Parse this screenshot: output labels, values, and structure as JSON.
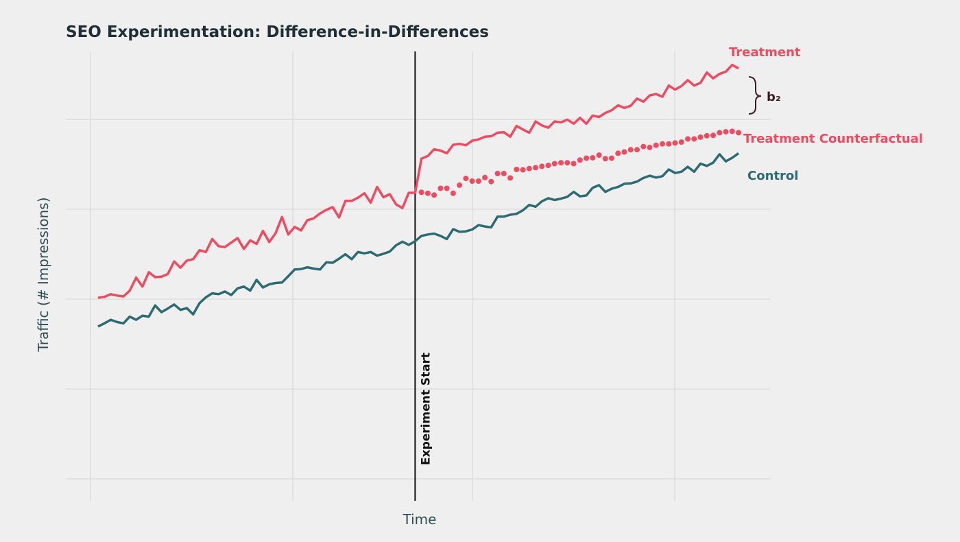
{
  "chart_data": {
    "type": "line",
    "title": "SEO Experimentation: Difference-in-Differences",
    "xlabel": "Time",
    "ylabel": "Traffic (# Impressions)",
    "xlim": [
      0,
      110
    ],
    "ylim": [
      0,
      100
    ],
    "grid": true,
    "vline": {
      "x": 50,
      "label": "Experiment Start"
    },
    "annotation": {
      "label": "b₂",
      "color": "#3a1c24"
    },
    "series": [
      {
        "name": "Treatment",
        "color": "#ef4b60",
        "style": "line",
        "x": [
          0,
          1,
          2,
          3,
          4,
          5,
          6,
          7,
          8,
          9,
          10,
          11,
          12,
          13,
          14,
          15,
          16,
          17,
          18,
          19,
          20,
          21,
          22,
          23,
          24,
          25,
          26,
          27,
          28,
          29,
          30,
          31,
          32,
          33,
          34,
          35,
          36,
          37,
          38,
          39,
          40,
          41,
          42,
          43,
          44,
          45,
          46,
          47,
          48,
          49,
          50,
          51,
          52,
          53,
          54,
          55,
          56,
          57,
          58,
          59,
          60,
          61,
          62,
          63,
          64,
          65,
          66,
          67,
          68,
          69,
          70,
          71,
          72,
          73,
          74,
          75,
          76,
          77,
          78,
          79,
          80,
          81,
          82,
          83,
          84,
          85,
          86,
          87,
          88,
          89,
          90,
          91,
          92,
          93,
          94,
          95,
          96,
          97,
          98,
          99,
          100,
          101
        ],
        "values": [
          52.3,
          52.5,
          53.1,
          52.8,
          52.6,
          53.9,
          56.8,
          54.8,
          58.0,
          56.9,
          57.0,
          57.6,
          60.4,
          59.0,
          60.6,
          60.9,
          62.9,
          62.5,
          65.4,
          63.8,
          63.6,
          64.6,
          65.6,
          63.2,
          65.1,
          64.3,
          67.2,
          64.7,
          66.7,
          70.3,
          66.4,
          68.1,
          67.3,
          69.6,
          70.0,
          71.1,
          71.9,
          72.5,
          70.2,
          73.9,
          73.9,
          74.6,
          75.6,
          73.5,
          77.0,
          74.7,
          75.4,
          73.1,
          72.3,
          75.7,
          75.7,
          83.3,
          83.9,
          85.4,
          85.1,
          84.5,
          86.4,
          86.6,
          86.3,
          87.3,
          87.6,
          88.2,
          88.3,
          89.1,
          89.2,
          88.2,
          90.6,
          89.8,
          89.1,
          91.6,
          90.7,
          90.2,
          91.6,
          91.4,
          92.0,
          91.1,
          92.4,
          91.1,
          92.9,
          92.6,
          93.5,
          94.1,
          95.2,
          94.6,
          95.1,
          96.7,
          96.0,
          97.4,
          97.7,
          97.1,
          99.6,
          98.7,
          99.5,
          100.8,
          99.6,
          100.2,
          102.5,
          101.2,
          102.2,
          102.7,
          104.2,
          103.4
        ]
      },
      {
        "name": "Treatment Counterfactual",
        "color": "#ef4b60",
        "style": "dots",
        "x": [
          51,
          52,
          53,
          54,
          55,
          56,
          57,
          58,
          59,
          60,
          61,
          62,
          63,
          64,
          65,
          66,
          67,
          68,
          69,
          70,
          71,
          72,
          73,
          74,
          75,
          76,
          77,
          78,
          79,
          80,
          81,
          82,
          83,
          84,
          85,
          86,
          87,
          88,
          89,
          90,
          91,
          92,
          93,
          94,
          95,
          96,
          97,
          98,
          99,
          100,
          101
        ],
        "values": [
          75.8,
          75.6,
          75.2,
          76.7,
          76.7,
          75.6,
          77.4,
          78.9,
          78.3,
          78.3,
          79.1,
          78.2,
          80.0,
          80.0,
          79.0,
          80.9,
          80.8,
          81.1,
          81.3,
          81.6,
          81.8,
          82.2,
          82.4,
          82.4,
          82.2,
          83.0,
          83.4,
          83.5,
          84.1,
          83.3,
          83.4,
          84.5,
          84.8,
          85.3,
          85.3,
          86.0,
          85.8,
          86.3,
          86.6,
          86.6,
          86.8,
          87.0,
          87.7,
          87.7,
          88.1,
          88.4,
          88.5,
          89.1,
          89.3,
          89.4,
          89.1
        ]
      },
      {
        "name": "Control",
        "color": "#2d6b72",
        "style": "line",
        "x": [
          0,
          1,
          2,
          3,
          4,
          5,
          6,
          7,
          8,
          9,
          10,
          11,
          12,
          13,
          14,
          15,
          16,
          17,
          18,
          19,
          20,
          21,
          22,
          23,
          24,
          25,
          26,
          27,
          28,
          29,
          30,
          31,
          32,
          33,
          34,
          35,
          36,
          37,
          38,
          39,
          40,
          41,
          42,
          43,
          44,
          45,
          46,
          47,
          48,
          49,
          50,
          51,
          52,
          53,
          54,
          55,
          56,
          57,
          58,
          59,
          60,
          61,
          62,
          63,
          64,
          65,
          66,
          67,
          68,
          69,
          70,
          71,
          72,
          73,
          74,
          75,
          76,
          77,
          78,
          79,
          80,
          81,
          82,
          83,
          84,
          85,
          86,
          87,
          88,
          89,
          90,
          91,
          92,
          93,
          94,
          95,
          96,
          97,
          98,
          99,
          100,
          101
        ],
        "values": [
          45.9,
          46.6,
          47.4,
          46.9,
          46.6,
          48.1,
          47.4,
          48.3,
          48.1,
          50.6,
          49.1,
          49.9,
          50.8,
          49.6,
          50.0,
          48.6,
          51.1,
          52.4,
          53.3,
          53.1,
          53.7,
          52.9,
          54.4,
          54.8,
          53.9,
          56.3,
          54.6,
          55.3,
          55.6,
          55.7,
          57.1,
          58.6,
          58.7,
          59.1,
          58.8,
          58.6,
          60.2,
          60.1,
          61.0,
          62.0,
          60.9,
          62.5,
          62.2,
          62.5,
          61.7,
          62.1,
          62.6,
          64.0,
          64.8,
          64.1,
          64.9,
          66.1,
          66.4,
          66.6,
          66.1,
          65.4,
          67.6,
          67.0,
          67.1,
          67.5,
          68.5,
          68.2,
          68.0,
          70.4,
          70.4,
          70.8,
          71.0,
          71.8,
          73.0,
          72.6,
          73.8,
          74.5,
          74.1,
          74.4,
          74.8,
          75.9,
          74.9,
          75.1,
          76.8,
          77.4,
          75.9,
          76.6,
          77.0,
          77.7,
          77.8,
          78.2,
          79.0,
          79.5,
          79.1,
          79.4,
          80.9,
          80.1,
          80.4,
          81.5,
          80.4,
          82.2,
          81.7,
          82.4,
          84.3,
          82.7,
          83.5,
          84.5
        ]
      }
    ]
  }
}
